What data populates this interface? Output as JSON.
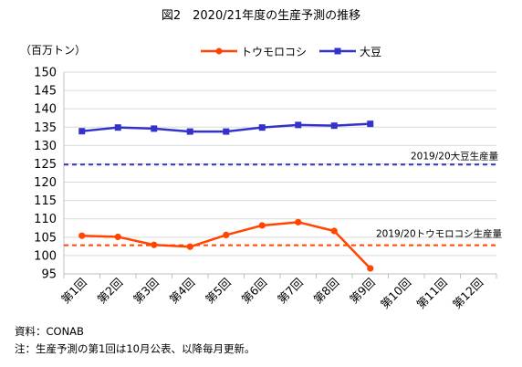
{
  "chart_data": {
    "type": "line",
    "title": "図2　2020/21年度の生産予測の推移",
    "ylabel": "（百万トン）",
    "ylim": [
      95,
      150
    ],
    "yticks": [
      95,
      100,
      105,
      110,
      115,
      120,
      125,
      130,
      135,
      140,
      145,
      150
    ],
    "categories": [
      "第1回",
      "第2回",
      "第3回",
      "第4回",
      "第5回",
      "第6回",
      "第7回",
      "第8回",
      "第9回",
      "第10回",
      "第11回",
      "第12回"
    ],
    "grid": true,
    "legend_position": "top",
    "series": [
      {
        "name": "トウモロコシ",
        "color": "#ff4500",
        "marker": "circle",
        "values": [
          105.4,
          105.1,
          102.9,
          102.4,
          105.6,
          108.2,
          109.1,
          106.7,
          96.5,
          null,
          null,
          null
        ]
      },
      {
        "name": "大豆",
        "color": "#3333cc",
        "marker": "square",
        "values": [
          133.9,
          134.9,
          134.6,
          133.8,
          133.8,
          134.9,
          135.6,
          135.4,
          135.9,
          null,
          null,
          null
        ]
      }
    ],
    "reference_lines": [
      {
        "label": "2019/20大豆生産量",
        "value": 124.8,
        "color": "#3333cc"
      },
      {
        "label": "2019/20トウモロコシ生産量",
        "value": 102.8,
        "color": "#ff4500"
      }
    ]
  },
  "footnotes": {
    "source": "資料：CONAB",
    "note": "注：生産予測の第1回は10月公表、以降毎月更新。"
  }
}
